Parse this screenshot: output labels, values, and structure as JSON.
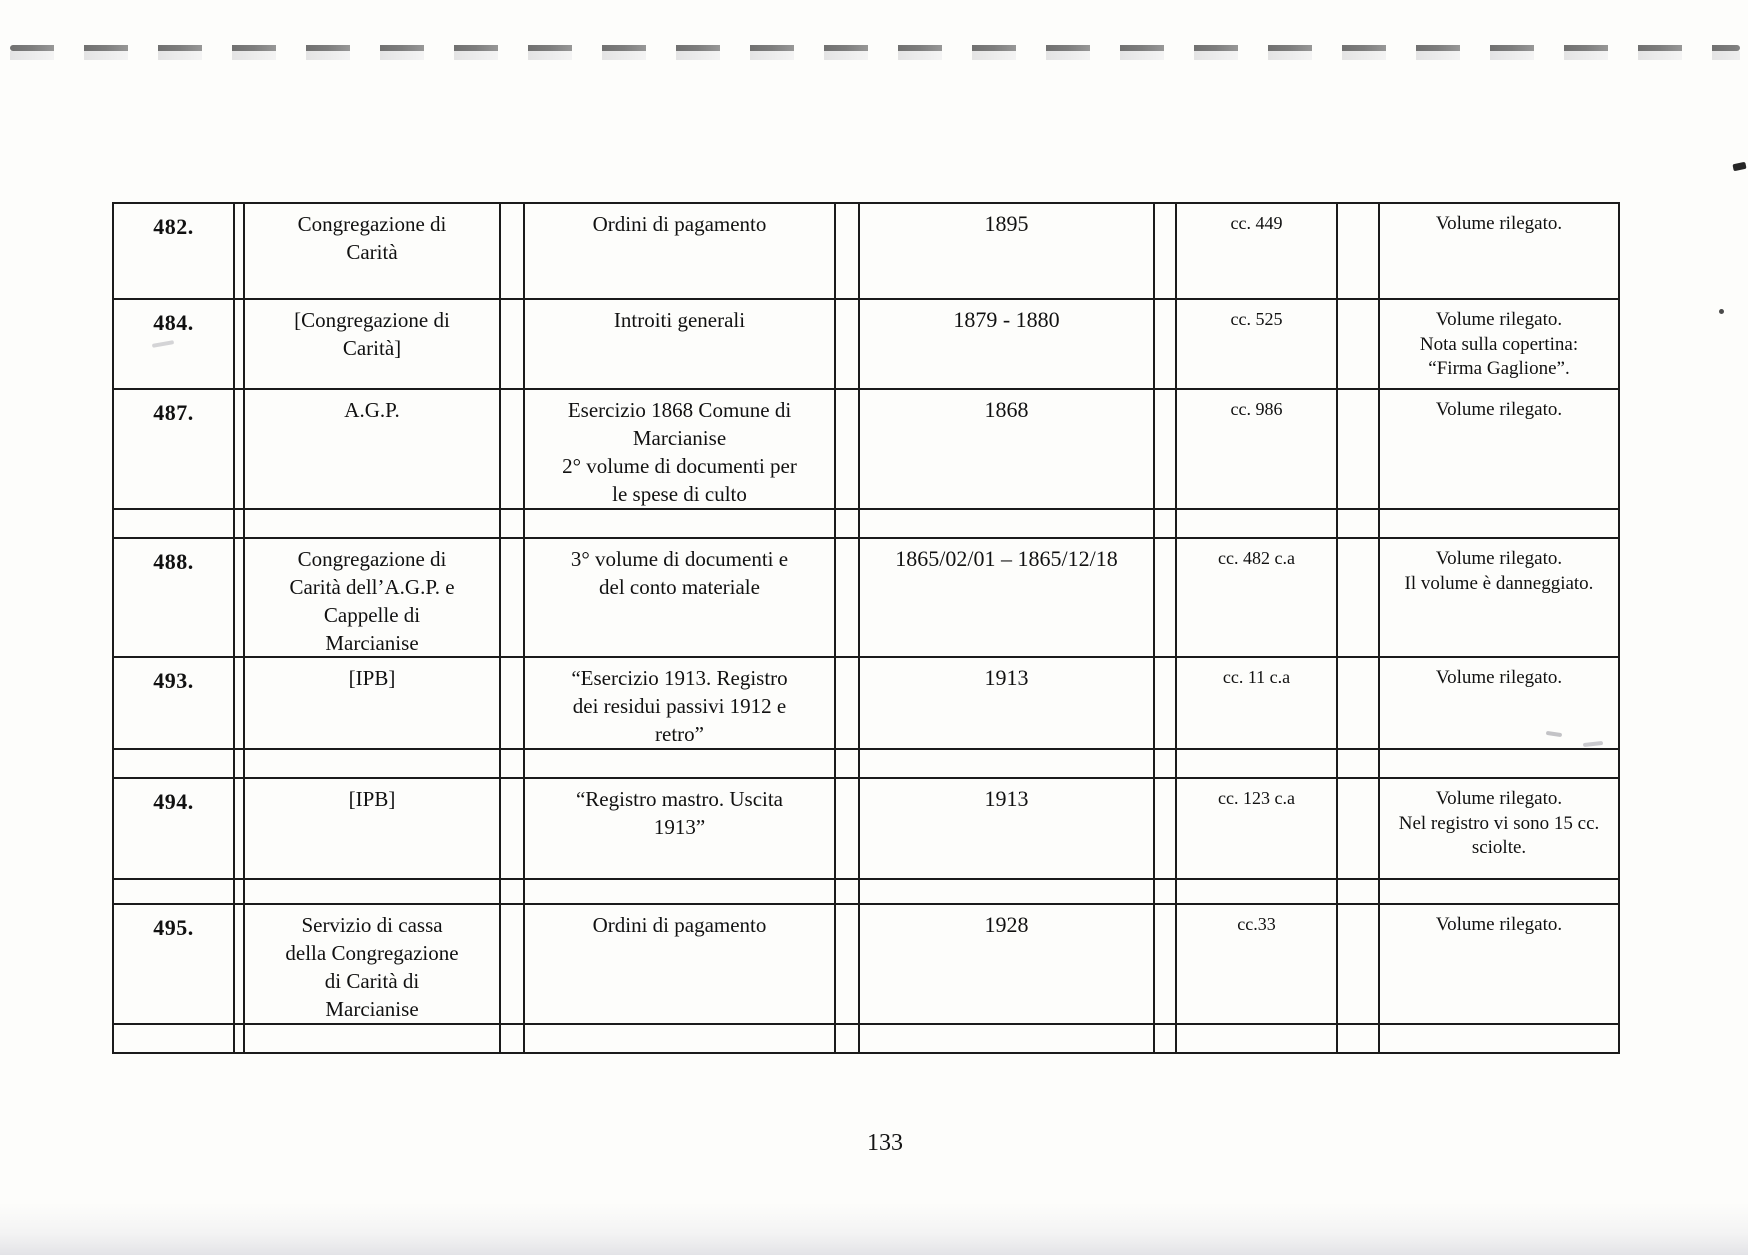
{
  "document": {
    "page_number": "133"
  },
  "table": {
    "rows": [
      {
        "num": "482.",
        "name": "Congregazione di\nCarità",
        "title": "Ordini di pagamento",
        "date": "1895",
        "cc": "cc. 449",
        "notes": "Volume rilegato."
      },
      {
        "num": "484.",
        "name": "[Congregazione di\nCarità]",
        "title": "Introiti generali",
        "date": "1879 - 1880",
        "cc": "cc. 525",
        "notes": "Volume rilegato.\nNota sulla copertina:\n“Firma Gaglione”."
      },
      {
        "num": "487.",
        "name": "A.G.P.",
        "title": "Esercizio 1868 Comune di\nMarcianise\n2° volume di documenti per\nle spese di culto",
        "date": "1868",
        "cc": "cc. 986",
        "notes": "Volume rilegato."
      },
      {
        "num": "488.",
        "name": "Congregazione di\nCarità dell’A.G.P. e\nCappelle di\nMarcianise",
        "title": "3° volume di documenti e\ndel conto materiale",
        "date": "1865/02/01 – 1865/12/18",
        "cc": "cc. 482 c.a",
        "notes": "Volume rilegato.\nIl volume è danneggiato."
      },
      {
        "num": "493.",
        "name": "[IPB]",
        "title": "“Esercizio 1913. Registro\ndei residui passivi 1912 e\nretro”",
        "date": "1913",
        "cc": "cc. 11 c.a",
        "notes": "Volume rilegato."
      },
      {
        "num": "494.",
        "name": "[IPB]",
        "title": "“Registro mastro. Uscita\n1913”",
        "date": "1913",
        "cc": "cc. 123 c.a",
        "notes": "Volume rilegato.\nNel registro vi sono 15 cc.\nsciolte."
      },
      {
        "num": "495.",
        "name": "Servizio di cassa\ndella Congregazione\ndi Carità di\nMarcianise",
        "title": "Ordini di pagamento",
        "date": "1928",
        "cc": "cc.33",
        "notes": "Volume rilegato."
      }
    ]
  }
}
